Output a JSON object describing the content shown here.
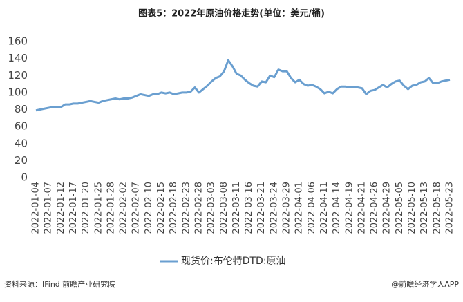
{
  "chart_data": {
    "type": "line",
    "title": "图表5：2022年原油价格走势(单位：美元/桶)",
    "categories": [
      "2022-01-04",
      null,
      null,
      "2022-01-07",
      null,
      null,
      "2022-01-12",
      null,
      null,
      "2022-01-17",
      null,
      null,
      "2022-01-20",
      null,
      null,
      "2022-01-25",
      null,
      null,
      "2022-01-28",
      null,
      null,
      "2022-02-02",
      null,
      null,
      "2022-02-07",
      null,
      null,
      "2022-02-10",
      null,
      null,
      "2022-02-15",
      null,
      null,
      "2022-02-18",
      null,
      null,
      "2022-02-23",
      null,
      null,
      "2022-02-28",
      null,
      null,
      "2022-03-03",
      null,
      null,
      "2022-03-08",
      null,
      null,
      "2022-03-11",
      null,
      null,
      "2022-03-16",
      null,
      null,
      "2022-03-21",
      null,
      null,
      "2022-03-24",
      null,
      null,
      "2022-03-29",
      null,
      null,
      "2022-04-01",
      null,
      null,
      "2022-04-06",
      null,
      null,
      "2022-04-11",
      null,
      null,
      "2022-04-14",
      null,
      null,
      "2022-04-19",
      null,
      null,
      "2022-04-21",
      null,
      null,
      "2022-04-26",
      null,
      null,
      "2022-04-29",
      null,
      null,
      "2022-05-05",
      null,
      null,
      "2022-05-10",
      null,
      null,
      "2022-05-13",
      null,
      null,
      "2022-05-18",
      null,
      null,
      "2022-05-23"
    ],
    "series": [
      {
        "name": "现货价:布伦特DTD:原油",
        "color": "#6a9fd0",
        "values": [
          79,
          80,
          81,
          82,
          83,
          83,
          83,
          86,
          86,
          87,
          87,
          88,
          89,
          90,
          89,
          88,
          90,
          91,
          92,
          93,
          92,
          93,
          93,
          94,
          96,
          98,
          97,
          96,
          98,
          98,
          100,
          99,
          100,
          98,
          99,
          100,
          100,
          101,
          106,
          100,
          104,
          108,
          113,
          117,
          119,
          125,
          138,
          131,
          122,
          120,
          115,
          111,
          108,
          107,
          113,
          112,
          120,
          118,
          127,
          125,
          125,
          117,
          112,
          115,
          110,
          108,
          109,
          107,
          104,
          99,
          101,
          99,
          104,
          107,
          107,
          106,
          106,
          106,
          105,
          98,
          102,
          103,
          106,
          109,
          106,
          110,
          113,
          114,
          108,
          104,
          108,
          109,
          112,
          113,
          117,
          111,
          111,
          113,
          114,
          115
        ]
      }
    ],
    "ylim": [
      0,
      160
    ],
    "yticks": [
      0,
      20,
      40,
      60,
      80,
      100,
      120,
      140,
      160
    ],
    "legend": "bottom",
    "source": "资料来源：IFind 前瞻产业研究院",
    "credit": "@前瞻经济学人APP"
  }
}
